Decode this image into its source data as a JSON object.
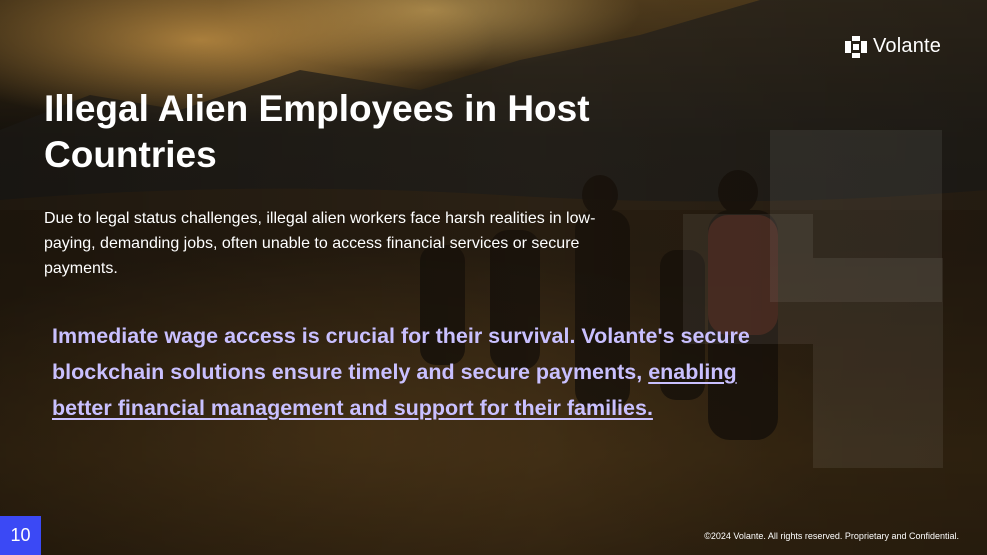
{
  "brand": {
    "name": "Volante",
    "icon": "volante-logo-icon"
  },
  "slide": {
    "title": "Illegal Alien Employees in Host Countries",
    "intro": "Due to legal status challenges, illegal alien workers face harsh realities in low-paying, demanding jobs, often unable to access financial services or secure payments.",
    "highlight_text": "Immediate wage access is crucial for their survival. Volante's secure blockchain solutions ensure timely and secure payments, ",
    "highlight_link": "enabling better financial management and support for their families.",
    "page_number": "10"
  },
  "footer": {
    "copyright": "©2024 Volante. All rights reserved. Proprietary and Confidential."
  },
  "colors": {
    "accent_blue": "#3b49f5",
    "highlight_purple": "#c9c0ff",
    "text": "#ffffff"
  }
}
